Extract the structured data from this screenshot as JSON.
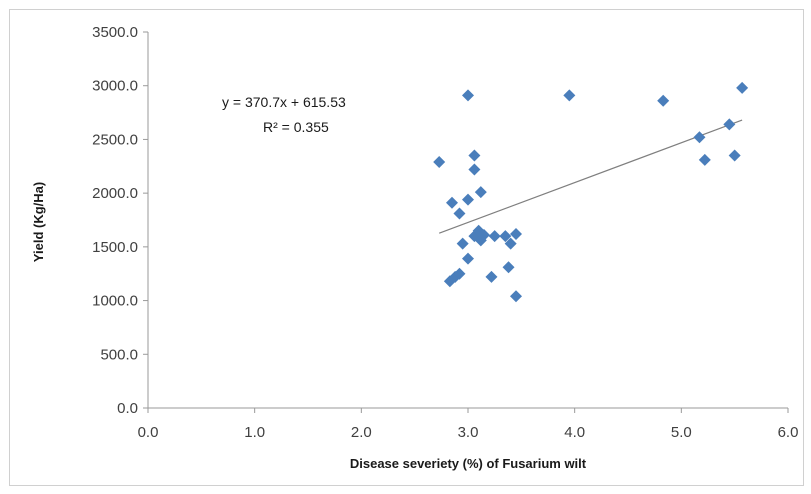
{
  "chart_data": {
    "type": "scatter",
    "title": "",
    "xlabel": "Disease severiety (%) of Fusarium wilt",
    "ylabel": "Yield (Kg/Ha)",
    "xlim": [
      0,
      6
    ],
    "ylim": [
      0,
      3500
    ],
    "x_ticks": [
      "0.0",
      "1.0",
      "2.0",
      "3.0",
      "4.0",
      "5.0",
      "6.0"
    ],
    "y_ticks": [
      "0.0",
      "500.0",
      "1000.0",
      "1500.0",
      "2000.0",
      "2500.0",
      "3000.0",
      "3500.0"
    ],
    "grid": false,
    "legend": "none",
    "marker_color": "#4a7ebb",
    "trendline_color": "#7f7f7f",
    "series": [
      {
        "points": [
          [
            2.73,
            2290
          ],
          [
            2.85,
            1910
          ],
          [
            2.92,
            1810
          ],
          [
            2.95,
            1530
          ],
          [
            2.83,
            1180
          ],
          [
            2.88,
            1220
          ],
          [
            2.92,
            1250
          ],
          [
            3.0,
            2910
          ],
          [
            3.0,
            1940
          ],
          [
            3.0,
            1390
          ],
          [
            3.06,
            2350
          ],
          [
            3.06,
            2220
          ],
          [
            3.12,
            2010
          ],
          [
            3.06,
            1600
          ],
          [
            3.1,
            1650
          ],
          [
            3.12,
            1560
          ],
          [
            3.15,
            1610
          ],
          [
            3.22,
            1220
          ],
          [
            3.25,
            1600
          ],
          [
            3.35,
            1600
          ],
          [
            3.38,
            1310
          ],
          [
            3.4,
            1530
          ],
          [
            3.45,
            1620
          ],
          [
            3.45,
            1040
          ],
          [
            3.95,
            2910
          ],
          [
            4.83,
            2860
          ],
          [
            5.17,
            2520
          ],
          [
            5.22,
            2310
          ],
          [
            5.45,
            2640
          ],
          [
            5.5,
            2350
          ],
          [
            5.57,
            2980
          ]
        ]
      }
    ],
    "trendline": {
      "slope": 370.7,
      "intercept": 615.53,
      "x_range": [
        2.73,
        5.57
      ],
      "equation": "y = 370.7x + 615.53",
      "r_squared": "R² = 0.355"
    }
  }
}
